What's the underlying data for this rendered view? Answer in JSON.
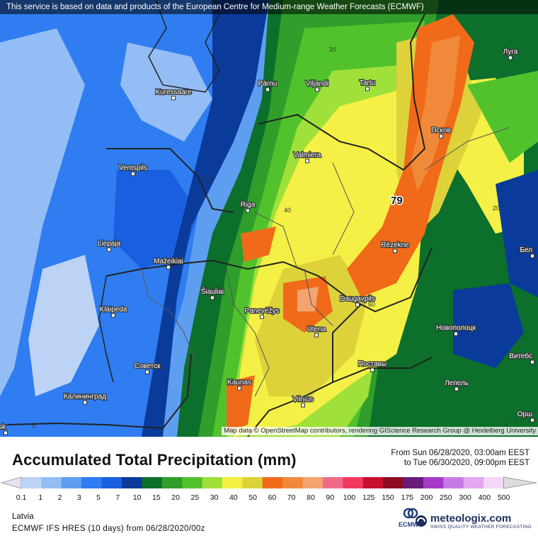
{
  "banner": "This service is based on data and products of the European Centre for Medium-range Weather Forecasts (ECMWF)",
  "attribution": "Map data © OpenStreetMap contributors, rendering GIScience Research Group @ Heidelberg University",
  "title": "Accumulated Total Precipitation (mm)",
  "period": {
    "from": "From Sun 06/28/2020, 03:00am EEST",
    "to": "to Tue 06/30/2020, 09:00pm EEST"
  },
  "region": "Latvia",
  "model": "ECMWF IFS HRES (10 days) from 06/28/2020/00z",
  "logos": {
    "ecmwf": "ECMWF",
    "meteologix": "meteologix.com",
    "meteologix_tagline": "SWISS QUALITY WEATHER FORECASTING"
  },
  "max_marker": "79",
  "contour_labels": [
    "20",
    "20",
    "40",
    "5",
    "5",
    "20",
    "60"
  ],
  "cities": [
    {
      "name": "Kuressaare"
    },
    {
      "name": "Pärnu"
    },
    {
      "name": "Viljandi"
    },
    {
      "name": "Tartu"
    },
    {
      "name": "Луга"
    },
    {
      "name": "Псков"
    },
    {
      "name": "Valmiera"
    },
    {
      "name": "Ventspils"
    },
    {
      "name": "Riga"
    },
    {
      "name": "Liepaja"
    },
    {
      "name": "Rēzekne"
    },
    {
      "name": "Mažeikiai"
    },
    {
      "name": "Šiauliai"
    },
    {
      "name": "Klaipeda"
    },
    {
      "name": "Panevėžys"
    },
    {
      "name": "Daugavpils"
    },
    {
      "name": "Utena"
    },
    {
      "name": "Новополоцк"
    },
    {
      "name": "Советск"
    },
    {
      "name": "Поставы"
    },
    {
      "name": "Kaunas"
    },
    {
      "name": "Калининград"
    },
    {
      "name": "Vilnius"
    },
    {
      "name": "Лепель"
    },
    {
      "name": "Витебс"
    },
    {
      "name": "Бел"
    },
    {
      "name": "Орш"
    },
    {
      "name": "ńsk"
    }
  ],
  "colorbar": {
    "ticks": [
      "0.1",
      "1",
      "2",
      "3",
      "5",
      "7",
      "10",
      "15",
      "20",
      "25",
      "30",
      "40",
      "50",
      "60",
      "70",
      "80",
      "90",
      "100",
      "125",
      "150",
      "175",
      "200",
      "250",
      "300",
      "400",
      "500"
    ],
    "colors": [
      "#e3e3f3",
      "#bcd3f6",
      "#93bdf4",
      "#5d9ef0",
      "#2f7df0",
      "#1a5fe0",
      "#0a3a9a",
      "#0c6f2b",
      "#2f9e2a",
      "#52c22c",
      "#9fe03a",
      "#f4f046",
      "#ddd23a",
      "#f06a1a",
      "#f08a3a",
      "#f4a470",
      "#f06a8a",
      "#f23a60",
      "#c8102e",
      "#8e0a22",
      "#6a1a7a",
      "#a63ac8",
      "#c87ae4",
      "#e4a8f0",
      "#f4d8f8",
      "#dcdcdc"
    ]
  }
}
